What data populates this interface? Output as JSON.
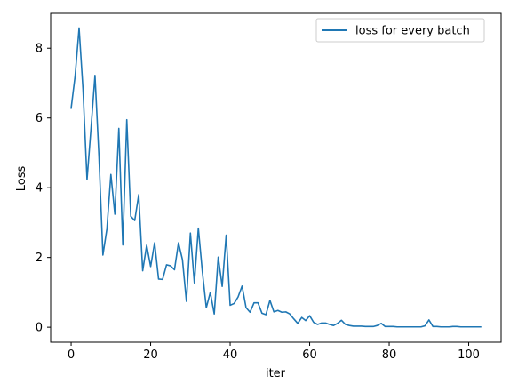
{
  "chart_data": {
    "type": "line",
    "title": "",
    "xlabel": "iter",
    "ylabel": "Loss",
    "xlim": [
      -5.15,
      108.15
    ],
    "ylim": [
      -0.43,
      9.0
    ],
    "xticks": [
      0,
      20,
      40,
      60,
      80,
      100
    ],
    "yticks": [
      0,
      2,
      4,
      6,
      8
    ],
    "xtick_labels": [
      "0",
      "20",
      "40",
      "60",
      "80",
      "100"
    ],
    "ytick_labels": [
      "0",
      "2",
      "4",
      "6",
      "8"
    ],
    "grid": false,
    "legend_position": "top-right",
    "series": [
      {
        "name": "loss for every batch",
        "color": "#1f77b4",
        "x": [
          0,
          1,
          2,
          3,
          4,
          5,
          6,
          7,
          8,
          9,
          10,
          11,
          12,
          13,
          14,
          15,
          16,
          17,
          18,
          19,
          20,
          21,
          22,
          23,
          24,
          25,
          26,
          27,
          28,
          29,
          30,
          31,
          32,
          33,
          34,
          35,
          36,
          37,
          38,
          39,
          40,
          41,
          42,
          43,
          44,
          45,
          46,
          47,
          48,
          49,
          50,
          51,
          52,
          53,
          54,
          55,
          56,
          57,
          58,
          59,
          60,
          61,
          62,
          63,
          64,
          65,
          66,
          67,
          68,
          69,
          70,
          71,
          72,
          73,
          74,
          75,
          76,
          77,
          78,
          79,
          80,
          81,
          82,
          83,
          84,
          85,
          86,
          87,
          88,
          89,
          90,
          91,
          92,
          93,
          94,
          95,
          96,
          97,
          98,
          99,
          100,
          101,
          102,
          103
        ],
        "values": [
          6.28,
          7.2,
          8.58,
          6.8,
          4.23,
          5.7,
          7.22,
          4.9,
          2.07,
          2.82,
          4.38,
          3.24,
          5.7,
          2.36,
          5.95,
          3.18,
          3.06,
          3.8,
          1.62,
          2.35,
          1.74,
          2.42,
          1.38,
          1.37,
          1.79,
          1.76,
          1.65,
          2.42,
          1.94,
          0.74,
          2.7,
          1.27,
          2.84,
          1.6,
          0.56,
          1.0,
          0.38,
          2.01,
          1.17,
          2.64,
          0.63,
          0.68,
          0.87,
          1.18,
          0.56,
          0.43,
          0.7,
          0.7,
          0.4,
          0.36,
          0.77,
          0.44,
          0.48,
          0.43,
          0.44,
          0.38,
          0.24,
          0.11,
          0.28,
          0.19,
          0.33,
          0.14,
          0.08,
          0.12,
          0.12,
          0.08,
          0.05,
          0.11,
          0.2,
          0.08,
          0.05,
          0.03,
          0.03,
          0.03,
          0.02,
          0.02,
          0.02,
          0.05,
          0.11,
          0.02,
          0.02,
          0.02,
          0.01,
          0.01,
          0.01,
          0.01,
          0.01,
          0.01,
          0.01,
          0.04,
          0.21,
          0.02,
          0.02,
          0.01,
          0.01,
          0.01,
          0.02,
          0.02,
          0.01,
          0.01,
          0.01,
          0.01,
          0.01,
          0.01
        ]
      }
    ]
  }
}
